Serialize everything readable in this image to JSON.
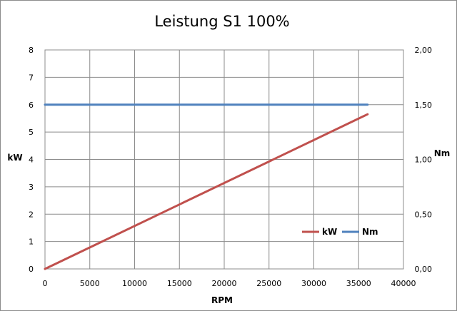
{
  "chart_data": {
    "type": "line",
    "title": "Leistung S1 100%",
    "xlabel": "RPM",
    "ylabel_left": "kW",
    "ylabel_right": "Nm",
    "xlim": [
      0,
      40000
    ],
    "ylim_left": [
      0,
      8
    ],
    "ylim_right": [
      0,
      2
    ],
    "x_ticks": [
      "0",
      "5000",
      "10000",
      "15000",
      "20000",
      "25000",
      "30000",
      "35000",
      "40000"
    ],
    "y_left_ticks": [
      "0",
      "1",
      "2",
      "3",
      "4",
      "5",
      "6",
      "7",
      "8"
    ],
    "y_right_ticks": [
      "0,00",
      "0,50",
      "1,00",
      "1,50",
      "2,00"
    ],
    "grid": true,
    "legend_position": "right",
    "series": [
      {
        "name": "kW",
        "axis": "left",
        "color": "#c0504d",
        "x": [
          0,
          36000
        ],
        "y": [
          0,
          5.65
        ]
      },
      {
        "name": "Nm",
        "axis": "right",
        "color": "#4f81bd",
        "x": [
          0,
          36000
        ],
        "y": [
          1.5,
          1.5
        ]
      }
    ]
  }
}
